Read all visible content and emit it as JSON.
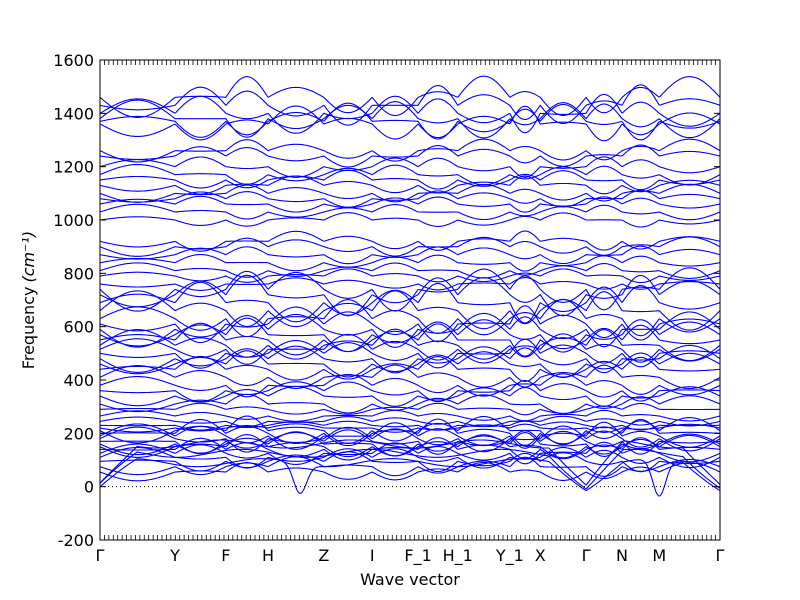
{
  "chart_data": {
    "type": "line",
    "title": "",
    "xlabel": "Wave vector",
    "ylabel": "Frequency",
    "ylabel_unit": "(cm⁻¹)",
    "ylim": [
      -200,
      1600
    ],
    "xlim": [
      0,
      1
    ],
    "grid": false,
    "y_ticks": [
      -200,
      0,
      200,
      400,
      600,
      800,
      1000,
      1200,
      1400,
      1600
    ],
    "zero_line": 0,
    "line_color": "#0000ff",
    "high_symmetry_points": [
      {
        "label": "Γ",
        "x": 0.0
      },
      {
        "label": "Y",
        "x": 0.121
      },
      {
        "label": "F",
        "x": 0.203
      },
      {
        "label": "H",
        "x": 0.271
      },
      {
        "label": "Z",
        "x": 0.361
      },
      {
        "label": "I",
        "x": 0.439
      },
      {
        "label": "F_1",
        "x": 0.513
      },
      {
        "label": "H_1",
        "x": 0.577
      },
      {
        "label": "Y_1",
        "x": 0.661
      },
      {
        "label": "X",
        "x": 0.71
      },
      {
        "label": "Γ",
        "x": 0.784
      },
      {
        "label": "N",
        "x": 0.842
      },
      {
        "label": "M",
        "x": 0.902
      },
      {
        "label": "Γ",
        "x": 1.0
      }
    ],
    "soft_modes": [
      {
        "near": "Z",
        "x": 0.323,
        "min_frequency": -25
      },
      {
        "near": "M",
        "x": 0.902,
        "min_frequency": -35
      }
    ],
    "acoustic_zero_points": [
      0.0,
      0.784,
      1.0
    ]
  }
}
